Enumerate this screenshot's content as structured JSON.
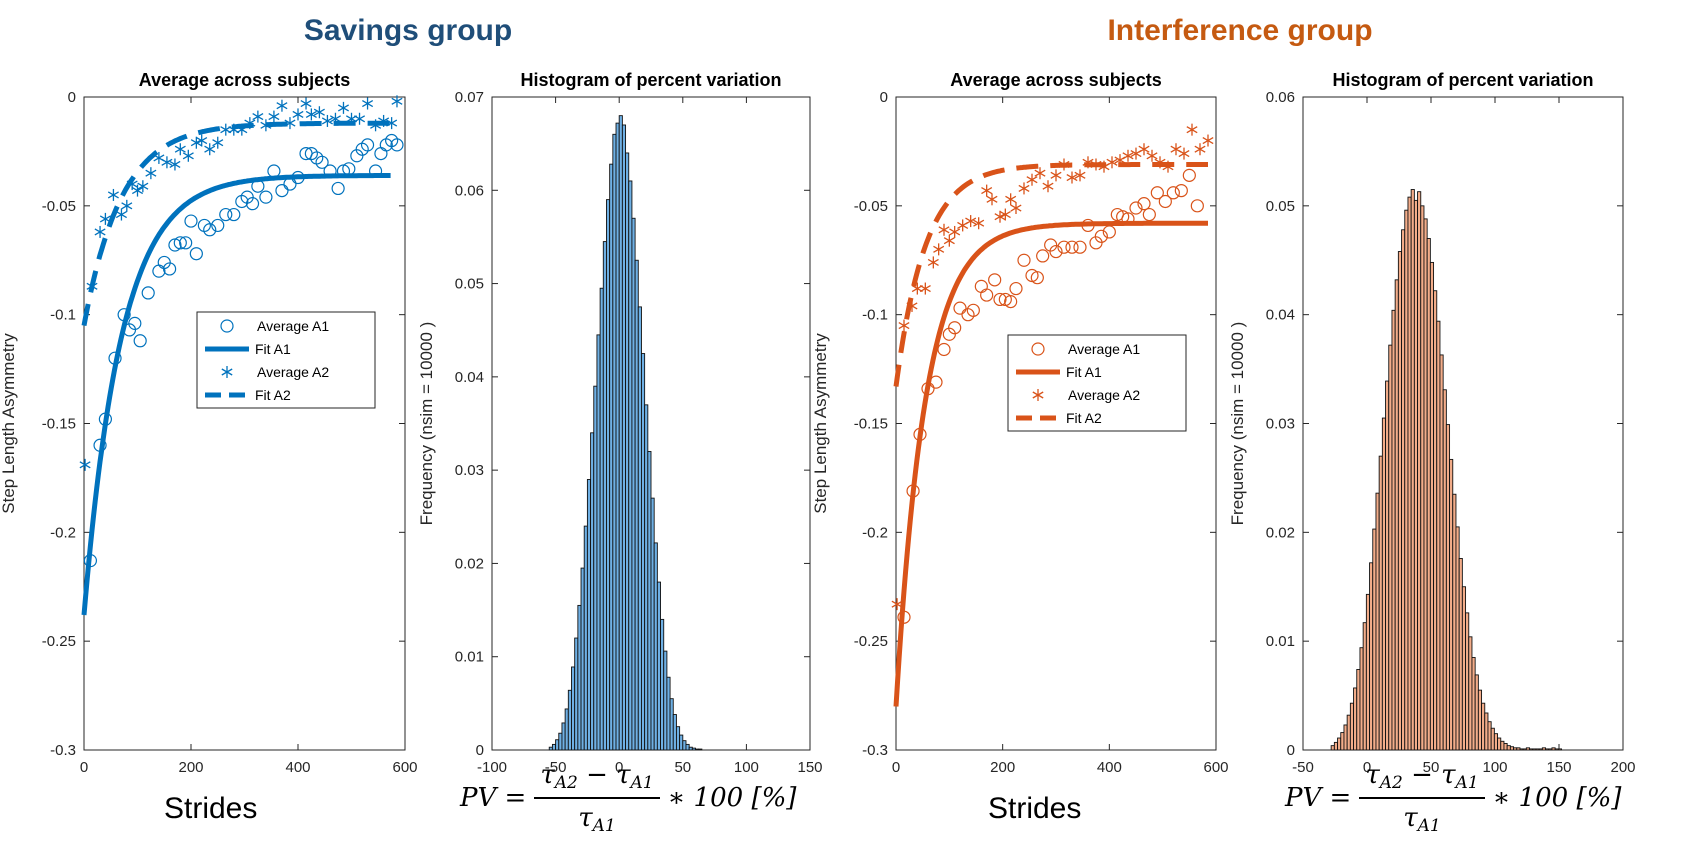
{
  "titles": {
    "savings": "Savings group",
    "interference": "Interference group"
  },
  "colors": {
    "savings_title": "#1f4e79",
    "interference_title": "#c55a11",
    "blue": "#0072bd",
    "orange": "#d95319",
    "blue_bar": "#6fb0e4",
    "orange_bar": "#f3ad8a"
  },
  "xlabels": {
    "strides_left": "Strides",
    "strides_right": "Strides"
  },
  "formula": {
    "lhs": "PV =",
    "num_a": "τ",
    "num_a_sub": "A2",
    "minus": "−",
    "num_b": "τ",
    "num_b_sub": "A1",
    "den": "τ",
    "den_sub": "A1",
    "rhs": "∗ 100 [%]"
  },
  "chart_data": [
    {
      "id": "savings-scatter",
      "type": "scatter",
      "title": "Average across subjects",
      "ylabel": "Step Length Asymmetry",
      "xlim": [
        0,
        600
      ],
      "ylim": [
        -0.3,
        0
      ],
      "xticks": [
        "0",
        "200",
        "400",
        "600"
      ],
      "yticks": [
        "0",
        "-0.05",
        "-0.1",
        "-0.15",
        "-0.2",
        "-0.25",
        "-0.3"
      ],
      "legend": {
        "position": "middle-right",
        "entries": [
          "Average A1",
          "Fit A1",
          "Average A2",
          "Fit A2"
        ]
      },
      "series": [
        {
          "name": "Average A1",
          "marker": "circle",
          "points": [
            [
              12,
              -0.213
            ],
            [
              30,
              -0.16
            ],
            [
              40,
              -0.148
            ],
            [
              58,
              -0.12
            ],
            [
              75,
              -0.1
            ],
            [
              85,
              -0.107
            ],
            [
              95,
              -0.104
            ],
            [
              105,
              -0.112
            ],
            [
              120,
              -0.09
            ],
            [
              140,
              -0.08
            ],
            [
              150,
              -0.076
            ],
            [
              160,
              -0.079
            ],
            [
              170,
              -0.068
            ],
            [
              180,
              -0.067
            ],
            [
              190,
              -0.067
            ],
            [
              200,
              -0.057
            ],
            [
              210,
              -0.072
            ],
            [
              225,
              -0.059
            ],
            [
              235,
              -0.061
            ],
            [
              250,
              -0.059
            ],
            [
              265,
              -0.054
            ],
            [
              280,
              -0.054
            ],
            [
              295,
              -0.048
            ],
            [
              305,
              -0.046
            ],
            [
              315,
              -0.049
            ],
            [
              325,
              -0.041
            ],
            [
              340,
              -0.046
            ],
            [
              355,
              -0.034
            ],
            [
              370,
              -0.043
            ],
            [
              385,
              -0.04
            ],
            [
              400,
              -0.037
            ],
            [
              415,
              -0.026
            ],
            [
              425,
              -0.026
            ],
            [
              435,
              -0.028
            ],
            [
              445,
              -0.03
            ],
            [
              460,
              -0.034
            ],
            [
              475,
              -0.042
            ],
            [
              485,
              -0.034
            ],
            [
              495,
              -0.033
            ],
            [
              510,
              -0.027
            ],
            [
              520,
              -0.024
            ],
            [
              530,
              -0.022
            ],
            [
              545,
              -0.034
            ],
            [
              555,
              -0.026
            ],
            [
              565,
              -0.022
            ],
            [
              575,
              -0.02
            ],
            [
              585,
              -0.022
            ]
          ]
        },
        {
          "name": "Fit A1",
          "line": "solid",
          "fit": {
            "a": -0.036,
            "b": -0.202,
            "tau": 70,
            "xmin": 0,
            "xmax": 575
          }
        },
        {
          "name": "Average A2",
          "marker": "asterisk",
          "points": [
            [
              2,
              -0.169
            ],
            [
              15,
              -0.087
            ],
            [
              30,
              -0.062
            ],
            [
              40,
              -0.056
            ],
            [
              55,
              -0.045
            ],
            [
              70,
              -0.054
            ],
            [
              80,
              -0.05
            ],
            [
              90,
              -0.04
            ],
            [
              100,
              -0.043
            ],
            [
              110,
              -0.041
            ],
            [
              125,
              -0.035
            ],
            [
              140,
              -0.028
            ],
            [
              155,
              -0.03
            ],
            [
              170,
              -0.031
            ],
            [
              180,
              -0.024
            ],
            [
              195,
              -0.027
            ],
            [
              210,
              -0.021
            ],
            [
              220,
              -0.02
            ],
            [
              235,
              -0.024
            ],
            [
              250,
              -0.021
            ],
            [
              265,
              -0.015
            ],
            [
              280,
              -0.015
            ],
            [
              295,
              -0.015
            ],
            [
              310,
              -0.012
            ],
            [
              325,
              -0.009
            ],
            [
              340,
              -0.013
            ],
            [
              355,
              -0.009
            ],
            [
              370,
              -0.004
            ],
            [
              385,
              -0.012
            ],
            [
              400,
              -0.008
            ],
            [
              415,
              -0.003
            ],
            [
              425,
              -0.008
            ],
            [
              440,
              -0.007
            ],
            [
              455,
              -0.011
            ],
            [
              470,
              -0.01
            ],
            [
              485,
              -0.005
            ],
            [
              500,
              -0.01
            ],
            [
              515,
              -0.01
            ],
            [
              530,
              -0.003
            ],
            [
              545,
              -0.013
            ],
            [
              560,
              -0.011
            ],
            [
              575,
              -0.012
            ],
            [
              585,
              -0.002
            ]
          ]
        },
        {
          "name": "Fit A2",
          "line": "dashed",
          "fit": {
            "a": -0.012,
            "b": -0.093,
            "tau": 70,
            "xmin": 0,
            "xmax": 575
          }
        }
      ]
    },
    {
      "id": "savings-hist",
      "type": "bar",
      "title": "Histogram of percent variation",
      "ylabel": "Frequency (nsim = 10000 )",
      "xlim": [
        -100,
        150
      ],
      "ylim": [
        0,
        0.07
      ],
      "xticks": [
        "-100",
        "-50",
        "0",
        "50",
        "100",
        "150"
      ],
      "yticks": [
        "0",
        "0.01",
        "0.02",
        "0.03",
        "0.04",
        "0.05",
        "0.06",
        "0.07"
      ],
      "bins": {
        "start": -55,
        "width": 2.5,
        "mean": 0,
        "sd": 15.5,
        "peak": 0.068,
        "values": [
          0.0003,
          0.0006,
          0.0011,
          0.0018,
          0.0029,
          0.0044,
          0.0064,
          0.0089,
          0.012,
          0.0155,
          0.0195,
          0.024,
          0.029,
          0.034,
          0.039,
          0.0445,
          0.0495,
          0.0545,
          0.059,
          0.0628,
          0.066,
          0.0672,
          0.068,
          0.067,
          0.064,
          0.061,
          0.057,
          0.0525,
          0.0475,
          0.0425,
          0.037,
          0.032,
          0.027,
          0.0222,
          0.018,
          0.014,
          0.0106,
          0.0078,
          0.0055,
          0.0038,
          0.0025,
          0.0016,
          0.001,
          0.0006,
          0.0003,
          0.0002,
          0.0001,
          0.0001
        ]
      }
    },
    {
      "id": "interference-scatter",
      "type": "scatter",
      "title": "Average across subjects",
      "ylabel": "Step Length Asymmetry",
      "xlim": [
        0,
        600
      ],
      "ylim": [
        -0.3,
        0
      ],
      "xticks": [
        "0",
        "200",
        "400",
        "600"
      ],
      "yticks": [
        "0",
        "-0.05",
        "-0.1",
        "-0.15",
        "-0.2",
        "-0.25",
        "-0.3"
      ],
      "legend": {
        "position": "middle-right",
        "entries": [
          "Average A1",
          "Fit A1",
          "Average A2",
          "Fit A2"
        ]
      },
      "series": [
        {
          "name": "Average A1",
          "marker": "circle",
          "points": [
            [
              15,
              -0.239
            ],
            [
              32,
              -0.181
            ],
            [
              45,
              -0.155
            ],
            [
              60,
              -0.134
            ],
            [
              75,
              -0.131
            ],
            [
              90,
              -0.116
            ],
            [
              100,
              -0.109
            ],
            [
              110,
              -0.106
            ],
            [
              120,
              -0.097
            ],
            [
              135,
              -0.1
            ],
            [
              145,
              -0.098
            ],
            [
              160,
              -0.087
            ],
            [
              170,
              -0.091
            ],
            [
              185,
              -0.084
            ],
            [
              195,
              -0.093
            ],
            [
              205,
              -0.093
            ],
            [
              215,
              -0.094
            ],
            [
              225,
              -0.088
            ],
            [
              240,
              -0.075
            ],
            [
              255,
              -0.082
            ],
            [
              265,
              -0.083
            ],
            [
              275,
              -0.073
            ],
            [
              290,
              -0.068
            ],
            [
              300,
              -0.071
            ],
            [
              315,
              -0.069
            ],
            [
              330,
              -0.069
            ],
            [
              345,
              -0.069
            ],
            [
              360,
              -0.059
            ],
            [
              375,
              -0.067
            ],
            [
              385,
              -0.064
            ],
            [
              400,
              -0.062
            ],
            [
              415,
              -0.054
            ],
            [
              425,
              -0.055
            ],
            [
              435,
              -0.056
            ],
            [
              450,
              -0.051
            ],
            [
              465,
              -0.049
            ],
            [
              475,
              -0.054
            ],
            [
              490,
              -0.044
            ],
            [
              505,
              -0.048
            ],
            [
              520,
              -0.044
            ],
            [
              535,
              -0.043
            ],
            [
              550,
              -0.036
            ],
            [
              565,
              -0.05
            ]
          ]
        },
        {
          "name": "Fit A1",
          "line": "solid",
          "fit": {
            "a": -0.058,
            "b": -0.222,
            "tau": 55,
            "xmin": 0,
            "xmax": 585
          }
        },
        {
          "name": "Average A2",
          "marker": "asterisk",
          "points": [
            [
              2,
              -0.233
            ],
            [
              15,
              -0.105
            ],
            [
              30,
              -0.096
            ],
            [
              40,
              -0.088
            ],
            [
              55,
              -0.088
            ],
            [
              70,
              -0.076
            ],
            [
              80,
              -0.07
            ],
            [
              90,
              -0.061
            ],
            [
              100,
              -0.066
            ],
            [
              110,
              -0.062
            ],
            [
              125,
              -0.059
            ],
            [
              140,
              -0.057
            ],
            [
              155,
              -0.058
            ],
            [
              170,
              -0.043
            ],
            [
              180,
              -0.047
            ],
            [
              195,
              -0.055
            ],
            [
              205,
              -0.054
            ],
            [
              215,
              -0.047
            ],
            [
              225,
              -0.051
            ],
            [
              240,
              -0.042
            ],
            [
              255,
              -0.038
            ],
            [
              270,
              -0.035
            ],
            [
              285,
              -0.041
            ],
            [
              300,
              -0.036
            ],
            [
              315,
              -0.031
            ],
            [
              330,
              -0.037
            ],
            [
              345,
              -0.036
            ],
            [
              360,
              -0.03
            ],
            [
              375,
              -0.031
            ],
            [
              390,
              -0.032
            ],
            [
              405,
              -0.03
            ],
            [
              420,
              -0.029
            ],
            [
              435,
              -0.027
            ],
            [
              450,
              -0.026
            ],
            [
              465,
              -0.024
            ],
            [
              480,
              -0.027
            ],
            [
              495,
              -0.03
            ],
            [
              510,
              -0.032
            ],
            [
              525,
              -0.024
            ],
            [
              540,
              -0.026
            ],
            [
              555,
              -0.015
            ],
            [
              570,
              -0.024
            ],
            [
              585,
              -0.02
            ]
          ]
        },
        {
          "name": "Fit A2",
          "line": "dashed",
          "fit": {
            "a": -0.031,
            "b": -0.102,
            "tau": 55,
            "xmin": 0,
            "xmax": 585
          }
        }
      ]
    },
    {
      "id": "interference-hist",
      "type": "bar",
      "title": "Histogram of percent variation",
      "ylabel": "Frequency (nsim = 10000 )",
      "xlim": [
        -50,
        200
      ],
      "ylim": [
        0,
        0.06
      ],
      "xticks": [
        "-50",
        "0",
        "50",
        "100",
        "150",
        "200"
      ],
      "yticks": [
        "0",
        "0.01",
        "0.02",
        "0.03",
        "0.04",
        "0.05",
        "0.06"
      ],
      "bins": {
        "start": -28,
        "width": 2.5,
        "mean": 38,
        "sd": 20,
        "peak": 0.0515,
        "values": [
          0.0004,
          0.0007,
          0.0011,
          0.0016,
          0.0023,
          0.0032,
          0.0043,
          0.0057,
          0.0074,
          0.0094,
          0.0117,
          0.0143,
          0.0172,
          0.0203,
          0.0236,
          0.027,
          0.0305,
          0.0339,
          0.0372,
          0.0404,
          0.0432,
          0.0458,
          0.0478,
          0.0496,
          0.0508,
          0.0515,
          0.0505,
          0.0513,
          0.05,
          0.0488,
          0.047,
          0.0448,
          0.0422,
          0.0394,
          0.0363,
          0.0331,
          0.0299,
          0.0267,
          0.0235,
          0.0205,
          0.0176,
          0.015,
          0.0126,
          0.0104,
          0.0085,
          0.0069,
          0.0055,
          0.0043,
          0.0034,
          0.0026,
          0.002,
          0.0015,
          0.0011,
          0.0008,
          0.0006,
          0.0004,
          0.0003,
          0.0002,
          0.0002,
          0.0001,
          0.0001,
          0.0002,
          0.0001,
          0.0001,
          0.0001,
          0.0001,
          0.0002,
          0.0001,
          0.0001,
          0.0002,
          0.0001,
          0.0001
        ]
      }
    }
  ]
}
